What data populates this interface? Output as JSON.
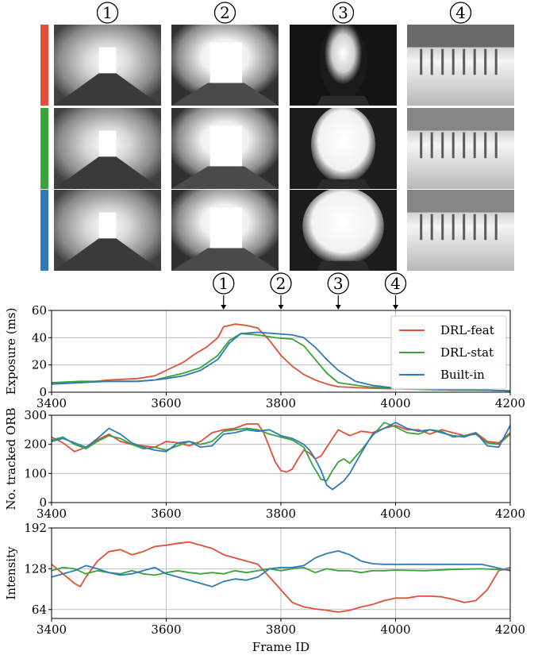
{
  "figure": {
    "circle_labels": [
      "1",
      "2",
      "3",
      "4"
    ],
    "row_colors": [
      "#e0503a",
      "#3aa33a",
      "#2f7ab8"
    ],
    "photo_description": "grayscale fisheye corridor frames"
  },
  "series_colors": {
    "DRL-feat": "#e0503a",
    "DRL-stat": "#3aa33a",
    "Built-in": "#2f7ab8"
  },
  "chart_data": [
    {
      "type": "line",
      "ylabel": "Exposure (ms)",
      "xlim": [
        3400,
        4200
      ],
      "ylim": [
        0,
        60
      ],
      "xticks": [
        3400,
        3600,
        3800,
        4000,
        4200
      ],
      "yticks": [
        0,
        20,
        40,
        60
      ],
      "grid": true,
      "legend": "top-right",
      "markers": [
        {
          "label": "1",
          "x": 3700
        },
        {
          "label": "2",
          "x": 3800
        },
        {
          "label": "3",
          "x": 3900
        },
        {
          "label": "4",
          "x": 4000
        }
      ],
      "series": [
        {
          "name": "DRL-feat",
          "x": [
            3400,
            3450,
            3500,
            3550,
            3580,
            3600,
            3630,
            3650,
            3670,
            3690,
            3700,
            3720,
            3740,
            3760,
            3780,
            3800,
            3820,
            3840,
            3860,
            3880,
            3900,
            3950,
            4000,
            4050,
            4100,
            4150,
            4200
          ],
          "y": [
            6,
            7,
            9,
            10,
            12,
            16,
            22,
            28,
            33,
            40,
            48,
            50,
            49,
            47,
            38,
            27,
            19,
            13,
            9,
            6,
            4,
            3,
            2.5,
            2,
            1.5,
            1.5,
            1
          ]
        },
        {
          "name": "DRL-stat",
          "x": [
            3400,
            3450,
            3500,
            3550,
            3580,
            3600,
            3630,
            3660,
            3690,
            3710,
            3730,
            3760,
            3790,
            3820,
            3840,
            3860,
            3880,
            3900,
            3950,
            4000,
            4050,
            4100,
            4150,
            4200
          ],
          "y": [
            7,
            8,
            8,
            8,
            9,
            11,
            14,
            18,
            27,
            38,
            43,
            42,
            40,
            39,
            34,
            24,
            14,
            7,
            4,
            3,
            2,
            1.5,
            1.5,
            1
          ]
        },
        {
          "name": "Built-in",
          "x": [
            3400,
            3450,
            3500,
            3550,
            3580,
            3600,
            3630,
            3660,
            3690,
            3710,
            3730,
            3760,
            3790,
            3820,
            3840,
            3860,
            3880,
            3900,
            3930,
            3960,
            4000,
            4050,
            4100,
            4150,
            4200
          ],
          "y": [
            6,
            7,
            8,
            8,
            9,
            10,
            12,
            16,
            24,
            36,
            43,
            44,
            43,
            42,
            40,
            33,
            24,
            16,
            8,
            5,
            3,
            2.5,
            2,
            1.5,
            1
          ]
        }
      ]
    },
    {
      "type": "line",
      "ylabel": "No. tracked ORB",
      "xlim": [
        3400,
        4200
      ],
      "ylim": [
        0,
        300
      ],
      "xticks": [
        3400,
        3600,
        3800,
        4000,
        4200
      ],
      "yticks": [
        0,
        100,
        200,
        300
      ],
      "grid": true,
      "series": [
        {
          "name": "DRL-feat",
          "x": [
            3400,
            3420,
            3440,
            3460,
            3480,
            3500,
            3520,
            3540,
            3560,
            3580,
            3600,
            3620,
            3640,
            3660,
            3680,
            3700,
            3720,
            3740,
            3760,
            3770,
            3780,
            3790,
            3800,
            3810,
            3820,
            3830,
            3840,
            3850,
            3860,
            3870,
            3880,
            3890,
            3900,
            3920,
            3940,
            3960,
            3980,
            4000,
            4020,
            4040,
            4060,
            4080,
            4100,
            4120,
            4140,
            4160,
            4180,
            4200
          ],
          "y": [
            225,
            205,
            175,
            190,
            215,
            235,
            210,
            200,
            195,
            190,
            210,
            205,
            195,
            210,
            240,
            250,
            255,
            270,
            270,
            240,
            190,
            140,
            110,
            105,
            115,
            150,
            180,
            170,
            150,
            160,
            190,
            220,
            250,
            230,
            245,
            240,
            255,
            265,
            250,
            250,
            235,
            250,
            240,
            230,
            240,
            210,
            205,
            240
          ]
        },
        {
          "name": "DRL-stat",
          "x": [
            3400,
            3420,
            3440,
            3460,
            3480,
            3500,
            3520,
            3540,
            3560,
            3580,
            3600,
            3620,
            3640,
            3660,
            3680,
            3700,
            3720,
            3740,
            3760,
            3780,
            3800,
            3820,
            3840,
            3855,
            3870,
            3880,
            3890,
            3900,
            3910,
            3920,
            3940,
            3960,
            3980,
            4000,
            4020,
            4040,
            4060,
            4080,
            4100,
            4120,
            4140,
            4160,
            4180,
            4200
          ],
          "y": [
            215,
            225,
            200,
            185,
            210,
            230,
            220,
            200,
            185,
            190,
            180,
            195,
            210,
            200,
            210,
            245,
            250,
            255,
            250,
            235,
            225,
            215,
            190,
            130,
            80,
            75,
            110,
            140,
            150,
            135,
            180,
            230,
            275,
            260,
            240,
            235,
            250,
            245,
            225,
            230,
            235,
            205,
            200,
            235
          ]
        },
        {
          "name": "Built-in",
          "x": [
            3400,
            3420,
            3440,
            3460,
            3480,
            3500,
            3520,
            3540,
            3560,
            3580,
            3600,
            3620,
            3640,
            3660,
            3680,
            3700,
            3720,
            3740,
            3760,
            3780,
            3800,
            3820,
            3840,
            3850,
            3860,
            3870,
            3880,
            3890,
            3900,
            3910,
            3920,
            3940,
            3960,
            3980,
            4000,
            4020,
            4040,
            4060,
            4080,
            4100,
            4120,
            4140,
            4160,
            4180,
            4200
          ],
          "y": [
            210,
            220,
            205,
            190,
            220,
            255,
            235,
            205,
            190,
            180,
            175,
            205,
            210,
            190,
            195,
            235,
            240,
            250,
            245,
            250,
            230,
            220,
            200,
            180,
            150,
            110,
            60,
            45,
            60,
            75,
            100,
            170,
            235,
            255,
            275,
            255,
            245,
            250,
            240,
            230,
            225,
            240,
            195,
            190,
            265
          ]
        }
      ]
    },
    {
      "type": "line",
      "ylabel": "Intensity",
      "xlabel": "Frame ID",
      "xlim": [
        3400,
        4200
      ],
      "ylim": [
        50,
        192
      ],
      "xticks": [
        3400,
        3600,
        3800,
        4000,
        4200
      ],
      "yticks": [
        64,
        128,
        192
      ],
      "grid": true,
      "series": [
        {
          "name": "DRL-feat",
          "x": [
            3400,
            3420,
            3440,
            3450,
            3460,
            3480,
            3500,
            3520,
            3540,
            3560,
            3580,
            3600,
            3620,
            3640,
            3660,
            3680,
            3700,
            3720,
            3740,
            3760,
            3780,
            3800,
            3820,
            3840,
            3860,
            3880,
            3900,
            3920,
            3940,
            3960,
            3980,
            4000,
            4020,
            4040,
            4060,
            4080,
            4100,
            4120,
            4140,
            4160,
            4180,
            4200
          ],
          "y": [
            135,
            120,
            105,
            100,
            115,
            140,
            155,
            158,
            150,
            155,
            163,
            165,
            168,
            170,
            165,
            160,
            150,
            145,
            140,
            135,
            115,
            95,
            75,
            68,
            65,
            63,
            60,
            63,
            68,
            72,
            78,
            82,
            82,
            85,
            85,
            84,
            80,
            75,
            78,
            95,
            125,
            130
          ]
        },
        {
          "name": "DRL-stat",
          "x": [
            3400,
            3420,
            3440,
            3460,
            3480,
            3500,
            3520,
            3540,
            3560,
            3580,
            3600,
            3620,
            3640,
            3660,
            3680,
            3700,
            3720,
            3740,
            3760,
            3780,
            3800,
            3820,
            3840,
            3860,
            3880,
            3900,
            3920,
            3940,
            3960,
            3980,
            4000,
            4050,
            4100,
            4150,
            4200
          ],
          "y": [
            125,
            130,
            128,
            120,
            125,
            122,
            120,
            125,
            120,
            118,
            122,
            125,
            122,
            120,
            122,
            120,
            125,
            122,
            125,
            128,
            125,
            128,
            130,
            122,
            128,
            125,
            125,
            122,
            125,
            125,
            126,
            125,
            127,
            128,
            126
          ]
        },
        {
          "name": "Built-in",
          "x": [
            3400,
            3420,
            3440,
            3460,
            3480,
            3500,
            3520,
            3540,
            3560,
            3580,
            3600,
            3620,
            3640,
            3660,
            3680,
            3700,
            3720,
            3740,
            3760,
            3780,
            3800,
            3820,
            3840,
            3860,
            3880,
            3900,
            3920,
            3940,
            3960,
            3980,
            4000,
            4050,
            4100,
            4150,
            4200
          ],
          "y": [
            115,
            120,
            125,
            133,
            128,
            122,
            118,
            120,
            125,
            130,
            120,
            115,
            110,
            105,
            100,
            108,
            112,
            110,
            115,
            128,
            130,
            130,
            133,
            145,
            152,
            156,
            150,
            140,
            136,
            135,
            135,
            135,
            135,
            135,
            125
          ]
        }
      ]
    }
  ]
}
